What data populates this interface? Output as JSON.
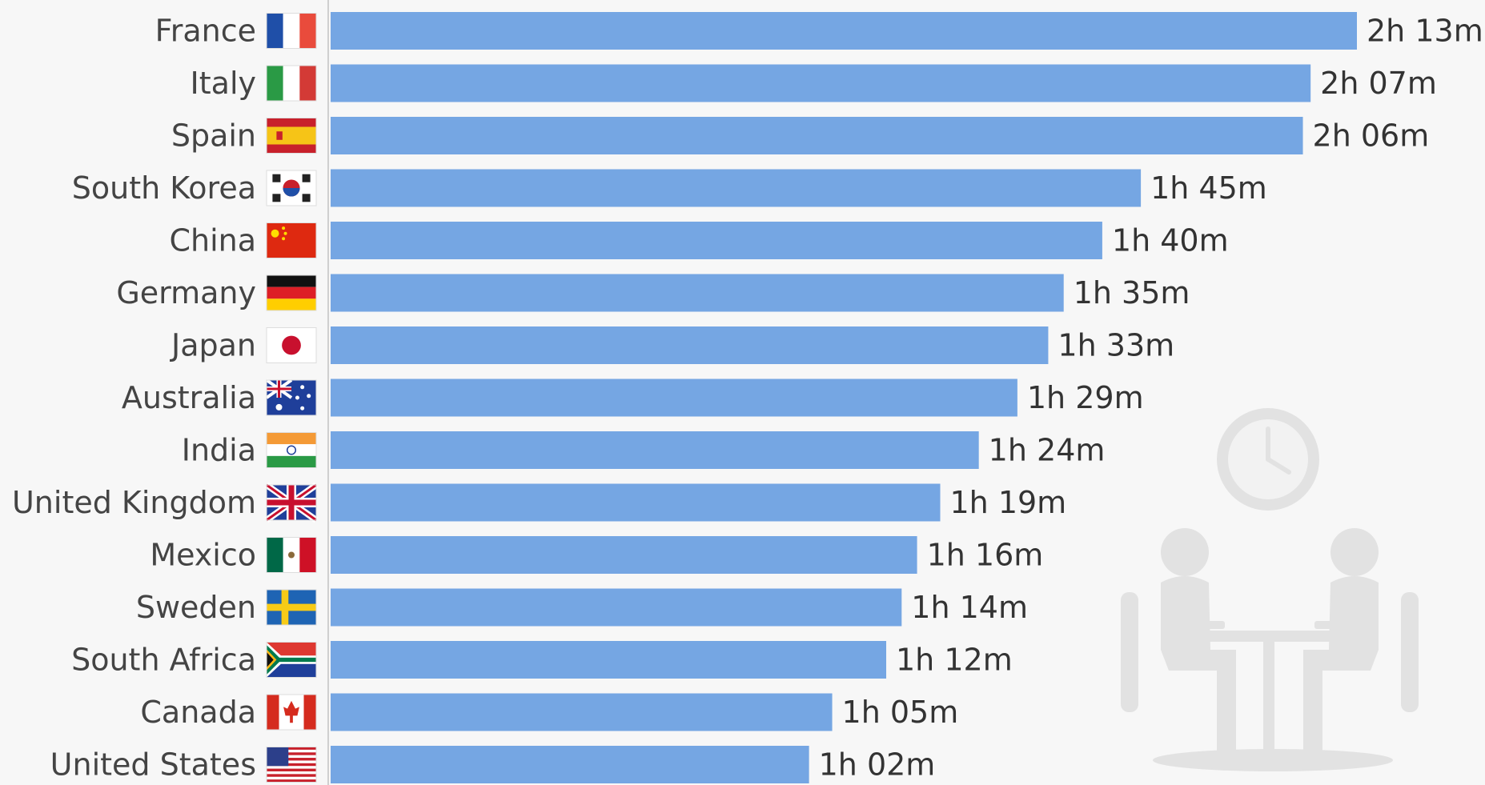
{
  "chart_data": {
    "type": "bar",
    "orientation": "horizontal",
    "categories": [
      "France",
      "Italy",
      "Spain",
      "South Korea",
      "China",
      "Germany",
      "Japan",
      "Australia",
      "India",
      "United Kingdom",
      "Mexico",
      "Sweden",
      "South Africa",
      "Canada",
      "United States"
    ],
    "values": [
      133,
      127,
      126,
      105,
      100,
      95,
      93,
      89,
      84,
      79,
      76,
      74,
      72,
      65,
      62
    ],
    "value_unit": "minutes",
    "value_labels": [
      "2h 13m",
      "2h 07m",
      "2h 06m",
      "1h 45m",
      "1h 40m",
      "1h 35m",
      "1h 33m",
      "1h 29m",
      "1h 24m",
      "1h 19m",
      "1h 16m",
      "1h 14m",
      "1h 12m",
      "1h 05m",
      "1h 02m"
    ],
    "flag_icons": [
      "france-flag-icon",
      "italy-flag-icon",
      "spain-flag-icon",
      "south-korea-flag-icon",
      "china-flag-icon",
      "germany-flag-icon",
      "japan-flag-icon",
      "australia-flag-icon",
      "india-flag-icon",
      "united-kingdom-flag-icon",
      "mexico-flag-icon",
      "sweden-flag-icon",
      "south-africa-flag-icon",
      "canada-flag-icon",
      "united-states-flag-icon"
    ],
    "title": "",
    "xlabel": "",
    "ylabel": "",
    "bar_color": "#75a6e3",
    "background_color": "#f7f7f7",
    "illustration_color": "#e2e2e2",
    "decorations": [
      "clock-icon",
      "dining-table-illustration"
    ],
    "grid": false
  }
}
